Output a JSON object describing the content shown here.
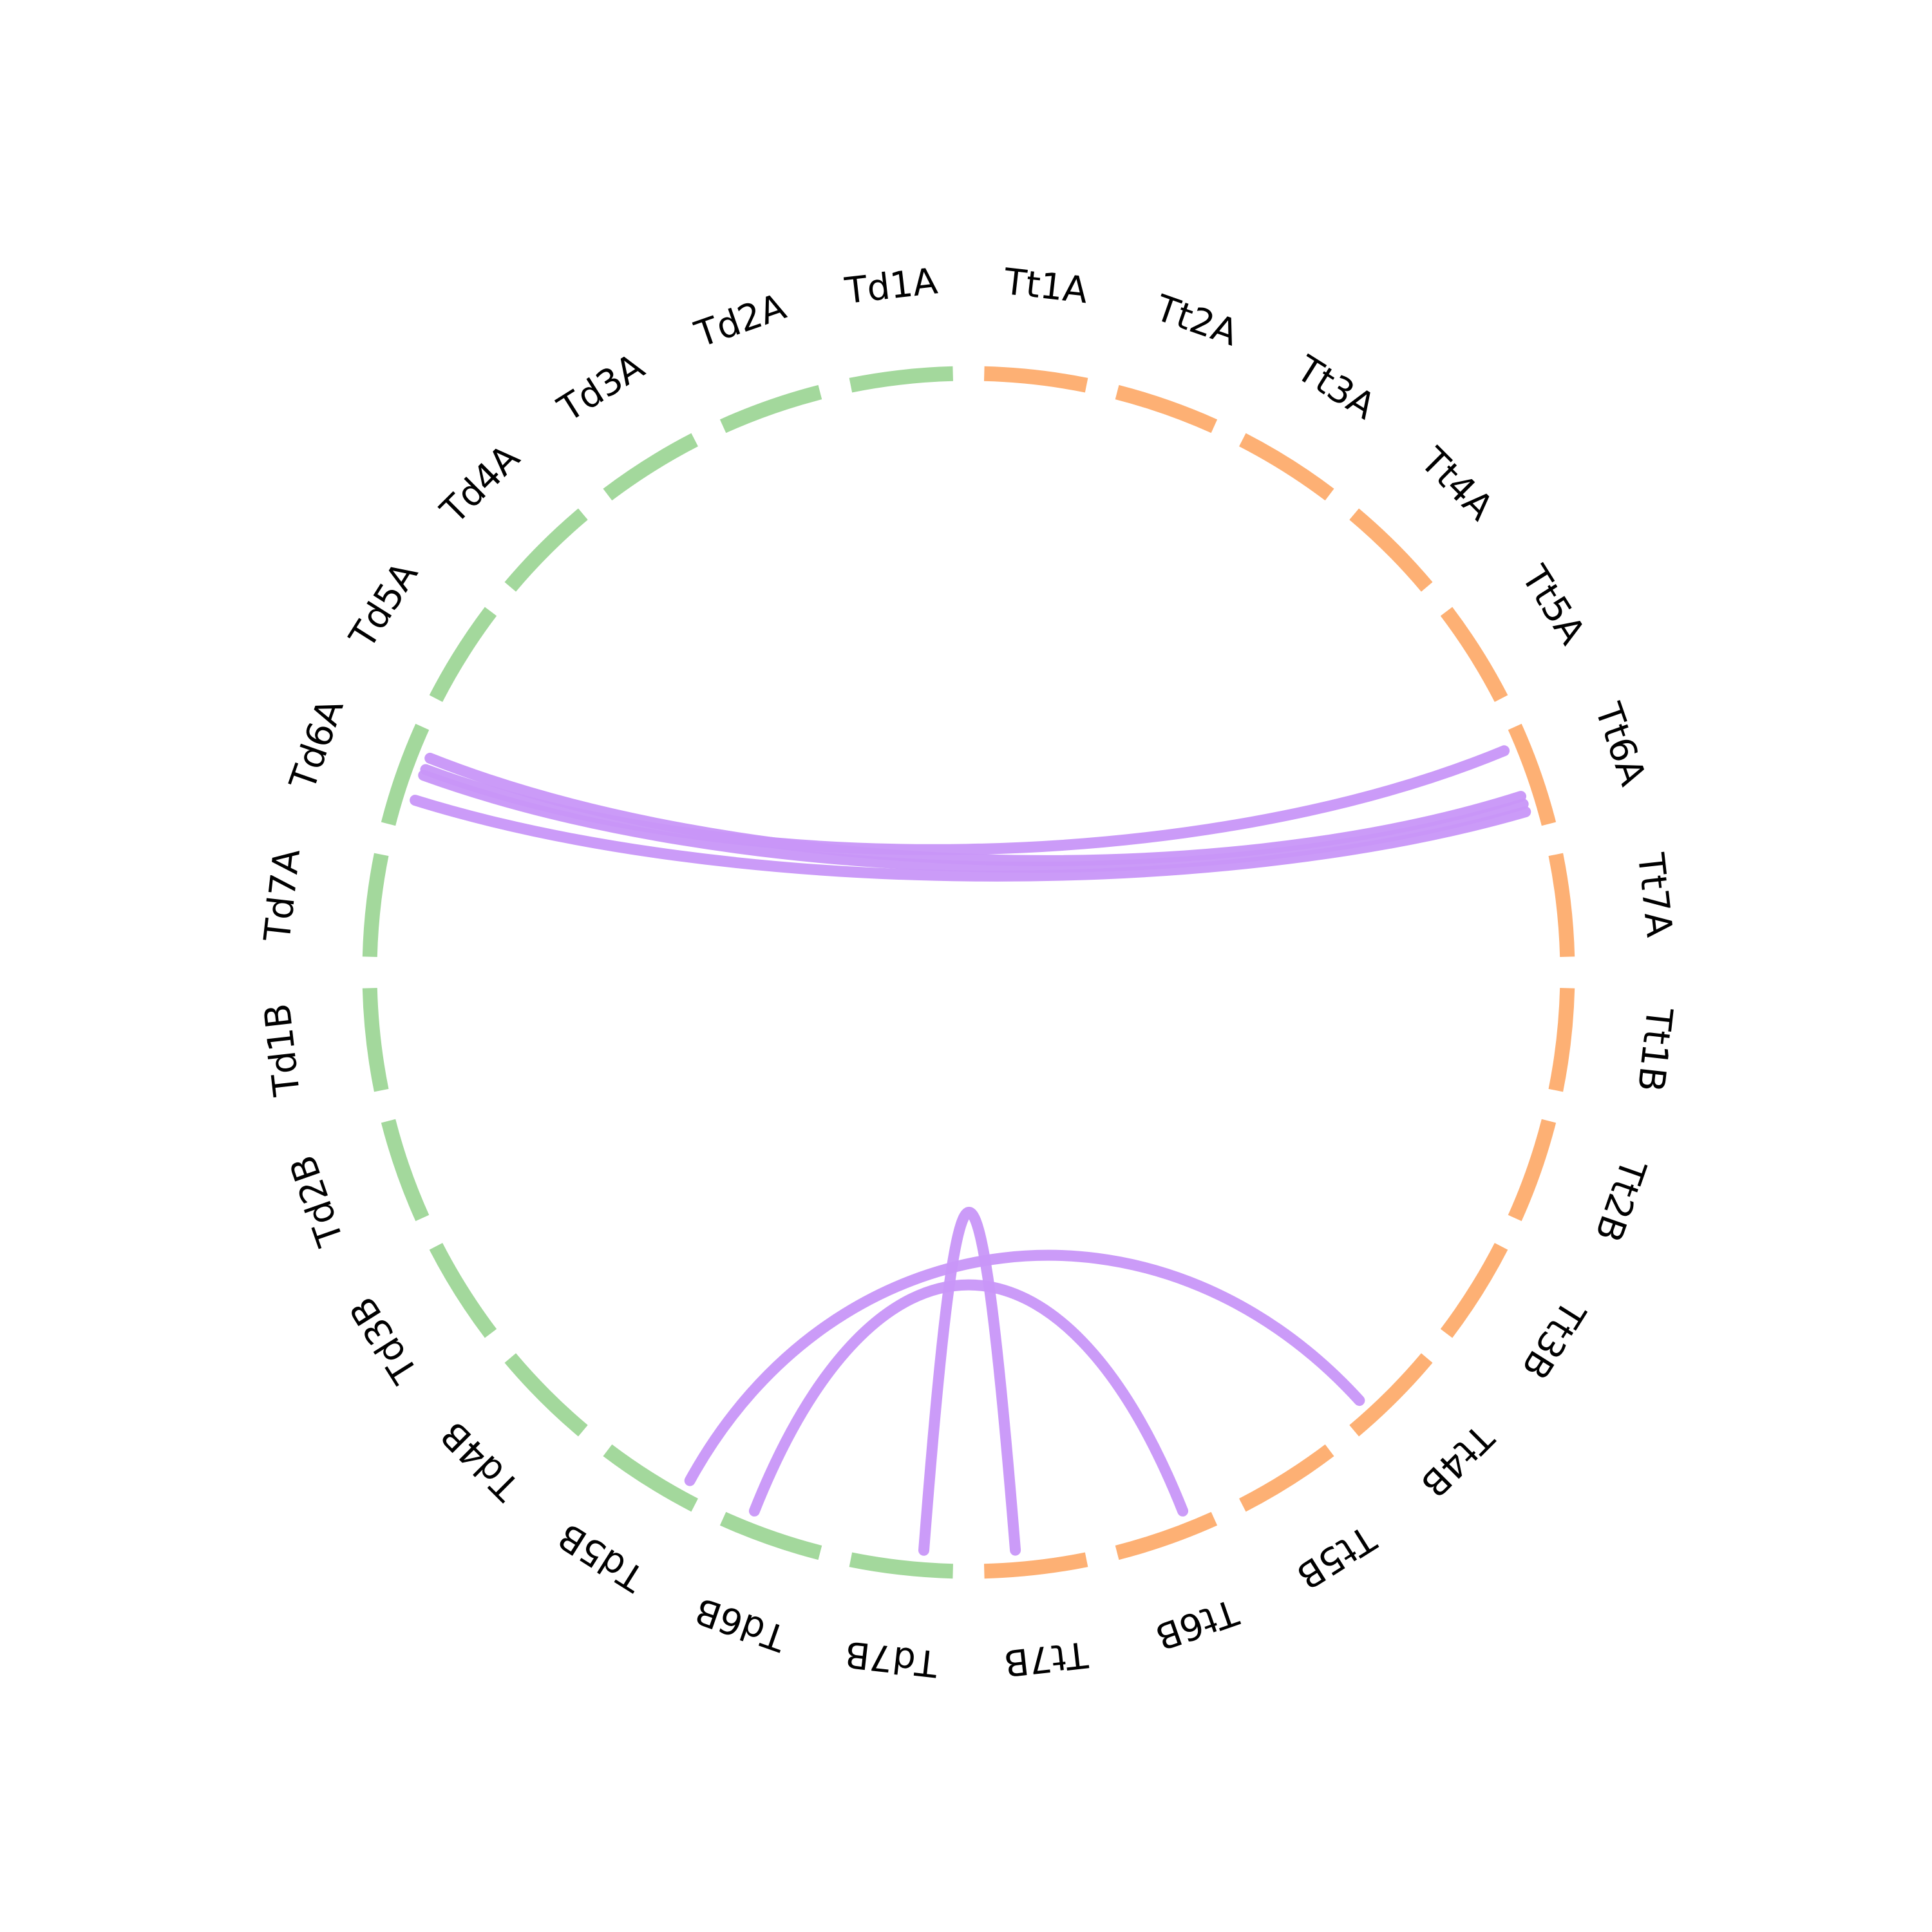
{
  "colors": {
    "background": "#ffffff",
    "group_td": "#a3d89c",
    "group_tt": "#fdb074",
    "links": "#c896f8",
    "label_text": "#000000"
  },
  "segments": [
    {
      "label": "Tt1A",
      "group": "tt"
    },
    {
      "label": "Tt2A",
      "group": "tt"
    },
    {
      "label": "Tt3A",
      "group": "tt"
    },
    {
      "label": "Tt4A",
      "group": "tt"
    },
    {
      "label": "Tt5A",
      "group": "tt"
    },
    {
      "label": "Tt6A",
      "group": "tt"
    },
    {
      "label": "Tt7A",
      "group": "tt"
    },
    {
      "label": "Tt1B",
      "group": "tt"
    },
    {
      "label": "Tt2B",
      "group": "tt"
    },
    {
      "label": "Tt3B",
      "group": "tt"
    },
    {
      "label": "Tt4B",
      "group": "tt"
    },
    {
      "label": "Tt5B",
      "group": "tt"
    },
    {
      "label": "Tt6B",
      "group": "tt"
    },
    {
      "label": "Tt7B",
      "group": "tt"
    },
    {
      "label": "Td7B",
      "group": "td"
    },
    {
      "label": "Td6B",
      "group": "td"
    },
    {
      "label": "Td5B",
      "group": "td"
    },
    {
      "label": "Td4B",
      "group": "td"
    },
    {
      "label": "Td3B",
      "group": "td"
    },
    {
      "label": "Td2B",
      "group": "td"
    },
    {
      "label": "Td1B",
      "group": "td"
    },
    {
      "label": "Td7A",
      "group": "td"
    },
    {
      "label": "Td6A",
      "group": "td"
    },
    {
      "label": "Td5A",
      "group": "td"
    },
    {
      "label": "Td4A",
      "group": "td"
    },
    {
      "label": "Td3A",
      "group": "td"
    },
    {
      "label": "Td2A",
      "group": "td"
    },
    {
      "label": "Td1A",
      "group": "td"
    }
  ],
  "links": [
    {
      "from": "Td6A",
      "to": "Tt6A"
    },
    {
      "from": "Td6A",
      "to": "Tt6A"
    },
    {
      "from": "Td6A",
      "to": "Tt6A"
    },
    {
      "from": "Td6A",
      "to": "Tt6A"
    },
    {
      "from": "Td5B",
      "to": "Tt4B"
    },
    {
      "from": "Td6B",
      "to": "Tt6B"
    },
    {
      "from": "Td7B",
      "to": "Tt7B"
    }
  ]
}
